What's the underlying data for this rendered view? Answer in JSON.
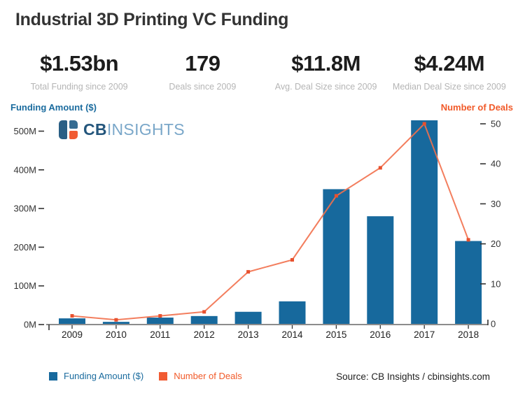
{
  "title": "Industrial 3D Printing VC Funding",
  "stats": [
    {
      "value": "$1.53bn",
      "caption": "Total Funding since 2009"
    },
    {
      "value": "179",
      "caption": "Deals since 2009"
    },
    {
      "value": "$11.8M",
      "caption": "Avg. Deal Size since 2009"
    },
    {
      "value": "$4.24M",
      "caption": "Median Deal Size since 2009"
    }
  ],
  "logo": {
    "text_bold": "CB",
    "text_light": "INSIGHTS"
  },
  "legend": [
    {
      "label": "Funding Amount ($)",
      "color": "#17699d",
      "text_color": "#1a6b9e"
    },
    {
      "label": "Number of Deals",
      "color": "#f15b33",
      "text_color": "#f15a29"
    }
  ],
  "source": "Source: CB Insights / cbinsights.com",
  "colors": {
    "bar_blue": "#17699d",
    "line_orange": "#f2704d",
    "marker_orange": "#e8512e",
    "left_axis_label_blue": "#1a6b9e",
    "right_axis_label_orange": "#f15a29",
    "logo_navy": "#24567c",
    "logo_light_blue": "#7aa7c9",
    "logo_icon_orange": "#f15b33",
    "axis_line_gray": "#8c8c8c",
    "title_gray": "#333333",
    "caption_gray": "#b5b5b5"
  },
  "chart_data": {
    "type": "bar",
    "subtype": "bar+line dual axis",
    "title": "Industrial 3D Printing VC Funding",
    "categories": [
      "2009",
      "2010",
      "2011",
      "2012",
      "2013",
      "2014",
      "2015",
      "2016",
      "2017",
      "2018"
    ],
    "series": [
      {
        "name": "Funding Amount ($)",
        "type": "bar",
        "axis": "left",
        "unit": "USD millions",
        "values": [
          16,
          7,
          18,
          22,
          33,
          60,
          350,
          280,
          528,
          216
        ],
        "color": "#17699d"
      },
      {
        "name": "Number of Deals",
        "type": "line",
        "axis": "right",
        "unit": "deals",
        "values": [
          2,
          1,
          2,
          3,
          13,
          16,
          32,
          39,
          50,
          21
        ],
        "color": "#f2704d",
        "marker_color": "#e8512e"
      }
    ],
    "left_axis": {
      "title": "Funding Amount ($)",
      "range": [
        0,
        500
      ],
      "tick_values": [
        0,
        100,
        200,
        300,
        400,
        500
      ],
      "tick_labels": [
        "0M",
        "100M",
        "200M",
        "300M",
        "400M",
        "500M"
      ]
    },
    "right_axis": {
      "title": "Number of Deals",
      "range": [
        0,
        50
      ],
      "tick_values": [
        0,
        10,
        20,
        30,
        40,
        50
      ],
      "tick_labels": [
        "0",
        "10",
        "20",
        "30",
        "40",
        "50"
      ]
    },
    "grid": false,
    "legend_position": "bottom-left",
    "annotations": [
      "CBINSIGHTS watermark top-left of plot",
      "Source: CB Insights / cbinsights.com"
    ]
  }
}
